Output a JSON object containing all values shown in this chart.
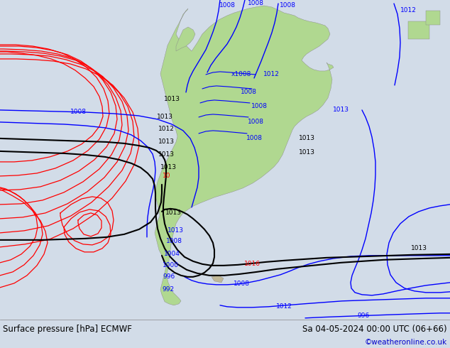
{
  "title_left": "Surface pressure [hPa] ECMWF",
  "title_right": "Sa 04-05-2024 00:00 UTC (06+66)",
  "credit": "©weatheronline.co.uk",
  "credit_color": "#0000cc",
  "ocean_color": "#d2dce8",
  "land_color": "#b0d890",
  "fig_width": 6.34,
  "fig_height": 4.9,
  "dpi": 100,
  "bottom_bar_color": "#e8e8e8",
  "text_color": "#000000",
  "font_size_title": 8.5,
  "font_size_credit": 7.5,
  "font_size_label": 6.5
}
